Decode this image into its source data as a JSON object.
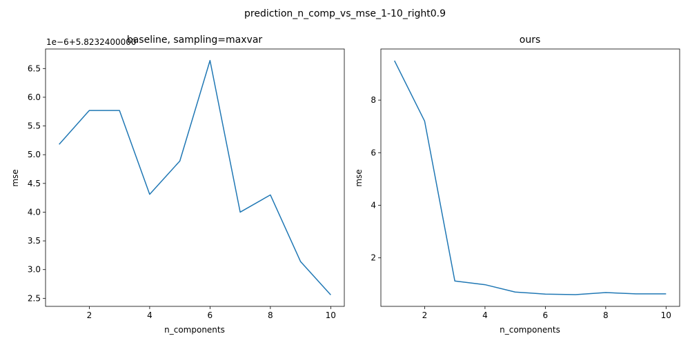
{
  "figure": {
    "suptitle": "prediction_n_comp_vs_mse_1-10_right0.9"
  },
  "chart_data": [
    {
      "type": "line",
      "title": "baseline, sampling=maxvar",
      "xlabel": "n_components",
      "ylabel": "mse",
      "offset_label": "1e−6+5.8232400000",
      "x": [
        1,
        2,
        3,
        4,
        5,
        6,
        7,
        8,
        9,
        10
      ],
      "series": [
        {
          "values": [
            5.18,
            5.77,
            5.77,
            4.31,
            4.89,
            6.64,
            4.0,
            4.3,
            3.14,
            2.56
          ],
          "color": "#1f77b4"
        }
      ],
      "xlim": [
        0.55,
        10.45
      ],
      "ylim": [
        2.36,
        6.84
      ],
      "xticks": [
        2,
        4,
        6,
        8,
        10
      ],
      "xtick_labels": [
        "2",
        "4",
        "6",
        "8",
        "10"
      ],
      "yticks": [
        2.5,
        3.0,
        3.5,
        4.0,
        4.5,
        5.0,
        5.5,
        6.0,
        6.5
      ],
      "ytick_labels": [
        "2.5",
        "3.0",
        "3.5",
        "4.0",
        "4.5",
        "5.0",
        "5.5",
        "6.0",
        "6.5"
      ],
      "grid": false
    },
    {
      "type": "line",
      "title": "ours",
      "xlabel": "n_components",
      "ylabel": "mse",
      "x": [
        1,
        2,
        3,
        4,
        5,
        6,
        7,
        8,
        9,
        10
      ],
      "series": [
        {
          "values": [
            9.5,
            7.2,
            1.12,
            0.98,
            0.7,
            0.62,
            0.6,
            0.68,
            0.63,
            0.63
          ],
          "color": "#1f77b4"
        }
      ],
      "xlim": [
        0.55,
        10.45
      ],
      "ylim": [
        0.155,
        9.945
      ],
      "xticks": [
        2,
        4,
        6,
        8,
        10
      ],
      "xtick_labels": [
        "2",
        "4",
        "6",
        "8",
        "10"
      ],
      "yticks": [
        2,
        4,
        6,
        8
      ],
      "ytick_labels": [
        "2",
        "4",
        "6",
        "8"
      ],
      "grid": false
    }
  ]
}
